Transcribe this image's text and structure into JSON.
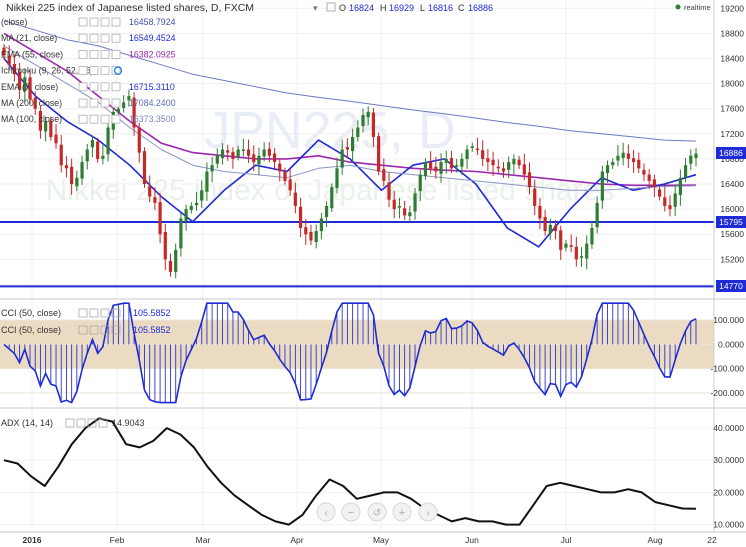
{
  "header": {
    "title": "Nikkei 225 index of Japanese listed shares, D, FXCM",
    "ohlc": [
      {
        "label": "O",
        "value": "16824"
      },
      {
        "label": "H",
        "value": "16929"
      },
      {
        "label": "L",
        "value": "16816"
      },
      {
        "label": "C",
        "value": "16886"
      }
    ],
    "realtime_label": "realtime"
  },
  "watermark": {
    "line1": "JPN225, D",
    "line2": "Nikkei 225 index of Japanese listed shares"
  },
  "indicators": [
    {
      "label": "(close)",
      "value": "16458.7924",
      "color": "#3f51b5"
    },
    {
      "label": "MA (21, close)",
      "value": "16549.4524",
      "color": "#1e2bd6"
    },
    {
      "label": "EMA (55, close)",
      "value": "16382.0925",
      "color": "#9c27b0"
    },
    {
      "label": "Ichimoku (9, 26, 52, 26)",
      "value": "",
      "color": "#888888"
    },
    {
      "label": "EMA (7, close)",
      "value": "16715.3110",
      "color": "#1e2bd6"
    },
    {
      "label": "MA (200, close)",
      "value": "17084.2400",
      "color": "#5c6bc0"
    },
    {
      "label": "MA (100, close)",
      "value": "16373.3500",
      "color": "#7986cb"
    }
  ],
  "price_axis": {
    "ticks": [
      "19200",
      "18800",
      "18400",
      "18000",
      "17600",
      "17200",
      "16800",
      "16400",
      "16000",
      "15600",
      "15200",
      "14800"
    ],
    "current_price": "16886",
    "support_1": "15795",
    "support_2": "14770"
  },
  "cci_panel": {
    "label1": "CCI (50, close)",
    "value1": "105.5852",
    "label2": "CCI (50, close)",
    "value2": "105.5852",
    "ticks": [
      "100.000",
      "0.0000",
      "-100.000",
      "-200.000"
    ]
  },
  "adx_panel": {
    "label": "ADX (14, 14)",
    "value": "14.9043",
    "ticks": [
      "40.0000",
      "30.0000",
      "20.0000",
      "10.0000"
    ]
  },
  "time_axis": {
    "labels": [
      "2016",
      "Feb",
      "Mar",
      "Apr",
      "May",
      "Jun",
      "Jul",
      "Aug",
      "22"
    ]
  },
  "colors": {
    "bull": "#2e7d32",
    "bear": "#c62828",
    "level_line": "#1e2bd6",
    "price_badge": "#1e2bd6",
    "cci_band": "#e8d5b7",
    "ema55": "#9c27b0"
  },
  "chart_data": {
    "type": "line",
    "title": "Nikkei 225 index of Japanese listed shares, D, FXCM",
    "ylim": [
      14600,
      19300
    ],
    "y_ticks": [
      19200,
      18800,
      18400,
      18000,
      17600,
      17200,
      16800,
      16400,
      16000,
      15600,
      15200,
      14800
    ],
    "x_labels": [
      "2016",
      "Feb",
      "Mar",
      "Apr",
      "May",
      "Jun",
      "Jul",
      "Aug",
      "22"
    ],
    "horizontal_levels": [
      15795,
      14770
    ],
    "close": [
      18450,
      18300,
      18150,
      17900,
      18100,
      17750,
      17600,
      17250,
      17400,
      17150,
      17050,
      16700,
      16650,
      16400,
      16500,
      16750,
      16950,
      17100,
      16800,
      16850,
      17300,
      17550,
      17600,
      17700,
      17800,
      17300,
      16900,
      16400,
      16200,
      16100,
      15600,
      15200,
      15000,
      15350,
      15850,
      16000,
      16050,
      16100,
      16300,
      16600,
      16700,
      16850,
      16950,
      16900,
      16800,
      16950,
      16950,
      16850,
      16750,
      16850,
      16950,
      16850,
      16750,
      16600,
      16450,
      16300,
      16050,
      15700,
      15600,
      15500,
      15650,
      15850,
      16050,
      16350,
      16650,
      16950,
      16950,
      17150,
      17300,
      17500,
      17550,
      17150,
      16600,
      16450,
      16150,
      16000,
      16050,
      15900,
      15950,
      16250,
      16550,
      16750,
      16650,
      16600,
      16750,
      16800,
      16650,
      16700,
      16800,
      16950,
      17000,
      16950,
      16800,
      16750,
      16700,
      16650,
      16600,
      16750,
      16800,
      16700,
      16550,
      16350,
      16050,
      15850,
      15650,
      15750,
      15650,
      15350,
      15450,
      15400,
      15200,
      15250,
      15450,
      15700,
      16100,
      16600,
      16700,
      16750,
      16850,
      16900,
      16800,
      16750,
      16650,
      16550,
      16450,
      16350,
      16200,
      16050,
      16000,
      16250,
      16500,
      16700,
      16850,
      16886
    ],
    "series": [
      {
        "name": "MA (200, close)",
        "values": [
          19000,
          18850,
          18700,
          18600,
          18450,
          18300,
          18150,
          18050,
          17950,
          17850,
          17780,
          17720,
          17650,
          17580,
          17520,
          17450,
          17380,
          17320,
          17250,
          17200,
          17150,
          17100,
          17084
        ]
      },
      {
        "name": "EMA (55, close)",
        "values": [
          18800,
          18500,
          18200,
          17800,
          17400,
          17050,
          16900,
          16850,
          16800,
          16800,
          16850,
          16750,
          16700,
          16650,
          16620,
          16600,
          16550,
          16500,
          16450,
          16400,
          16380,
          16380,
          16382
        ]
      },
      {
        "name": "MA (21, close)",
        "values": [
          18400,
          17800,
          17400,
          17100,
          16700,
          16200,
          15800,
          16300,
          16700,
          16600,
          17100,
          16800,
          16300,
          16700,
          16800,
          16400,
          15700,
          15400,
          16000,
          16500,
          16300,
          16400,
          16549
        ]
      },
      {
        "name": "MA (100, close)",
        "values": [
          18600,
          18300,
          18000,
          17700,
          17300,
          16950,
          16700,
          16600,
          16550,
          16500,
          16650,
          16700,
          16600,
          16550,
          16500,
          16450,
          16400,
          16350,
          16300,
          16300,
          16330,
          16360,
          16373
        ]
      }
    ],
    "cci": {
      "name": "CCI (50, close)",
      "ylim": [
        -250,
        175
      ],
      "last": 105.5852
    },
    "adx": {
      "name": "ADX (14, 14)",
      "ylim": [
        8,
        45
      ],
      "last": 14.9043,
      "values": [
        30,
        29,
        25,
        22,
        28,
        35,
        40,
        43,
        42,
        35,
        34,
        36,
        40,
        38,
        34,
        28,
        23,
        19,
        16,
        13,
        11,
        10,
        13,
        19,
        24,
        22,
        18,
        19,
        20,
        20,
        18,
        15,
        13,
        11,
        12,
        11,
        11,
        10,
        10,
        16,
        22,
        23,
        22,
        21,
        20,
        20,
        21,
        20,
        17,
        16,
        15,
        14.9
      ]
    }
  }
}
